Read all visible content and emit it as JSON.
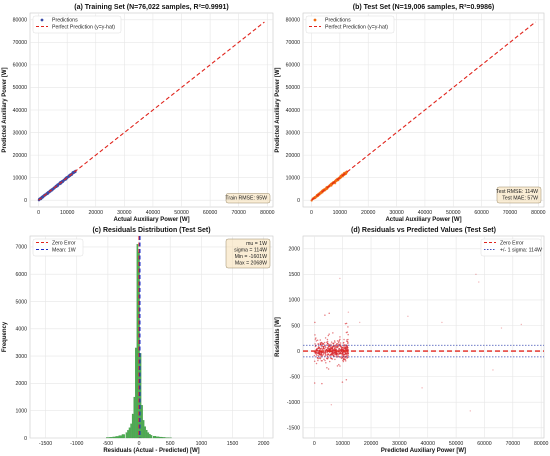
{
  "chart_data": [
    {
      "id": "a",
      "type": "scatter",
      "title": "(a) Training Set (N=76,022 samples, R²=0.9991)",
      "xlabel": "Actual Auxiliary Power [W]",
      "ylabel": "Predicted Auxiliary Power [W]",
      "xlim": [
        -3000,
        82000
      ],
      "ylim": [
        -3000,
        83000
      ],
      "xticks": [
        0,
        10000,
        20000,
        30000,
        40000,
        50000,
        60000,
        70000,
        80000
      ],
      "yticks": [
        0,
        10000,
        20000,
        30000,
        40000,
        50000,
        60000,
        70000,
        80000
      ],
      "grid": true,
      "point_color": "#3b4ba8",
      "point_range": [
        0,
        13000
      ],
      "reference_line": {
        "label": "Perfect Prediction (y=y-hat)",
        "from": [
          0,
          0
        ],
        "to": [
          79000,
          79000
        ],
        "color": "#e0241c"
      },
      "legend": {
        "position": "top-left",
        "entries": [
          "Predictions",
          "Perfect Prediction (y=y-hat)"
        ]
      },
      "annotation": [
        "Train RMSE: 95W"
      ]
    },
    {
      "id": "b",
      "type": "scatter",
      "title": "(b) Test Set (N=19,006 samples, R²=0.9986)",
      "xlabel": "Actual Auxiliary Power [W]",
      "ylabel": "Predicted Auxiliary Power [W]",
      "xlim": [
        -3000,
        82000
      ],
      "ylim": [
        -3000,
        83000
      ],
      "xticks": [
        0,
        10000,
        20000,
        30000,
        40000,
        50000,
        60000,
        70000,
        80000
      ],
      "yticks": [
        0,
        10000,
        20000,
        30000,
        40000,
        50000,
        60000,
        70000,
        80000
      ],
      "grid": true,
      "point_color": "#f26b0f",
      "point_range": [
        0,
        12500
      ],
      "reference_line": {
        "label": "Perfect Prediction (y=y-hat)",
        "from": [
          0,
          0
        ],
        "to": [
          79000,
          79000
        ],
        "color": "#e0241c"
      },
      "legend": {
        "position": "top-left",
        "entries": [
          "Predictions",
          "Perfect Prediction (y=y-hat)"
        ]
      },
      "annotation": [
        "Test RMSE: 114W",
        "Test MAE: 57W"
      ]
    },
    {
      "id": "c",
      "type": "bar",
      "title": "(c) Residuals Distribution (Test Set)",
      "xlabel": "Residuals (Actual - Predicted) [W]",
      "ylabel": "Frequency",
      "xlim": [
        -1750,
        2150
      ],
      "ylim": [
        0,
        7400
      ],
      "xticks": [
        -1500,
        -1000,
        -500,
        0,
        500,
        1000,
        1500,
        2000
      ],
      "yticks": [
        0,
        1000,
        2000,
        3000,
        4000,
        5000,
        6000,
        7000
      ],
      "grid": true,
      "bar_color": "#4caf50",
      "bin_centers": [
        -500,
        -450,
        -400,
        -350,
        -300,
        -250,
        -200,
        -175,
        -150,
        -125,
        -100,
        -75,
        -50,
        -25,
        0,
        25,
        50,
        75,
        100,
        125,
        150,
        175,
        200,
        250,
        300,
        350,
        400,
        450,
        500
      ],
      "values": [
        20,
        30,
        40,
        60,
        90,
        130,
        200,
        280,
        380,
        520,
        880,
        1500,
        3300,
        7100,
        6800,
        3100,
        1200,
        650,
        420,
        290,
        200,
        140,
        100,
        70,
        50,
        35,
        25,
        15,
        10
      ],
      "vlines": [
        {
          "label": "Zero Error",
          "x": 0,
          "color": "#e0241c"
        },
        {
          "label": "Mean: 1W",
          "x": 1,
          "color": "#1a2bc8"
        }
      ],
      "legend": {
        "position": "top-left",
        "entries": [
          "Zero Error",
          "Mean: 1W"
        ]
      },
      "annotation": [
        "mu = 1W",
        "sigma = 114W",
        "Min = -1601W",
        "Max = 2068W"
      ]
    },
    {
      "id": "d",
      "type": "scatter",
      "title": "(d) Residuals vs Predicted Values (Test Set)",
      "xlabel": "Predicted Auxiliary Power [W]",
      "ylabel": "Residuals [W]",
      "xlim": [
        -4000,
        81000
      ],
      "ylim": [
        -1700,
        2250
      ],
      "xticks": [
        0,
        10000,
        20000,
        30000,
        40000,
        50000,
        60000,
        70000,
        80000
      ],
      "yticks": [
        -1500,
        -1000,
        -500,
        0,
        500,
        1000,
        1500,
        2000
      ],
      "grid": true,
      "point_color": "#d7262d",
      "hlines": [
        {
          "label": "Zero Error",
          "y": 0,
          "color": "#e0241c"
        },
        {
          "label": "+/- 1 sigma: 114W",
          "y": 114,
          "color": "#3f4fb5"
        },
        {
          "label": "+/- 1 sigma: 114W",
          "y": -114,
          "color": "#3f4fb5"
        }
      ],
      "legend": {
        "position": "top-right",
        "entries": [
          "Zero Error",
          "+/- 1 sigma: 114W"
        ]
      },
      "outliers": [
        [
          16000,
          560
        ],
        [
          33000,
          680
        ],
        [
          45000,
          560
        ],
        [
          57000,
          1500
        ],
        [
          58000,
          1350
        ],
        [
          66000,
          450
        ],
        [
          73000,
          520
        ],
        [
          38000,
          -720
        ],
        [
          55000,
          -1170
        ],
        [
          63000,
          -370
        ],
        [
          9000,
          1420
        ],
        [
          12000,
          760
        ],
        [
          6000,
          -1050
        ]
      ]
    }
  ]
}
